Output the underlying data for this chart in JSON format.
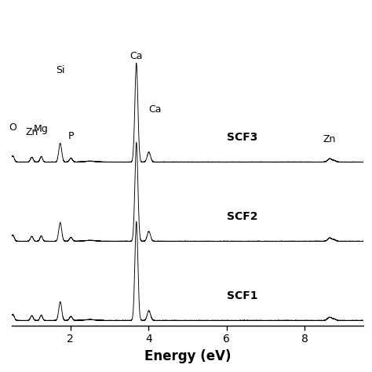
{
  "xlabel": "Energy (eV)",
  "xlim": [
    0.5,
    9.5
  ],
  "xticks": [
    2,
    4,
    6,
    8
  ],
  "xtick_labels": [
    "2",
    "4",
    "6",
    "8"
  ],
  "series_labels": [
    "SCF3",
    "SCF2",
    "SCF1"
  ],
  "offsets": [
    1.6,
    0.8,
    0.0
  ],
  "element_labels": {
    "O": 0.525,
    "Zn": 1.012,
    "Mg": 1.254,
    "Si": 1.74,
    "P": 2.013,
    "Ca_main": 3.69,
    "Ca_second": 4.01,
    "Zn_high": 8.64
  },
  "background_color": "#ffffff",
  "line_color": "#000000",
  "label_fontsize": 9,
  "axis_label_fontsize": 12,
  "tick_fontsize": 10,
  "ca_peak_scale": 4.5,
  "si_peak_scale": 0.9,
  "noise_scale": 0.008
}
